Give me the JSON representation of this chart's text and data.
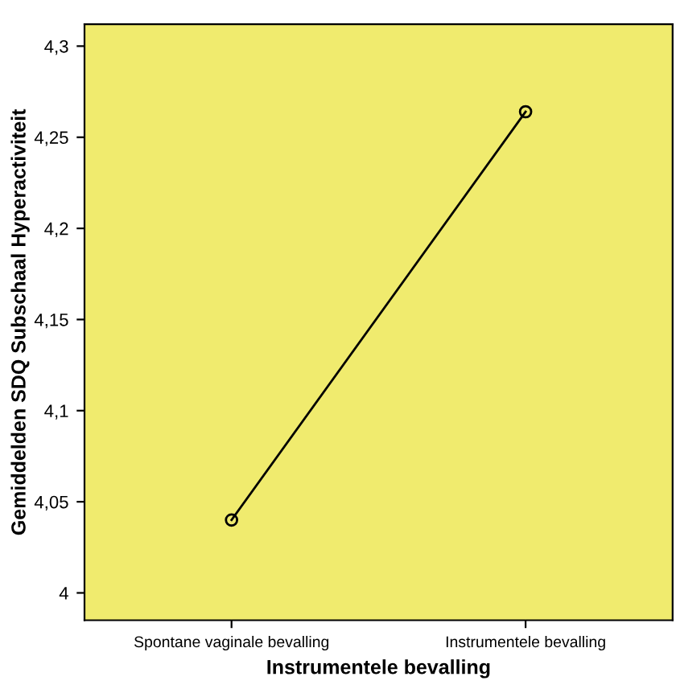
{
  "chart_data": {
    "type": "line",
    "xlabel": "Instrumentele bevalling",
    "ylabel": "Gemiddelden SDQ Subschaal Hyperactiviteit",
    "categories": [
      "Spontane vaginale bevalling",
      "Instrumentele bevalling"
    ],
    "series": [
      {
        "color": "#000000",
        "values": [
          4.04,
          4.264
        ]
      }
    ],
    "ylim": [
      3.985,
      4.312
    ],
    "yticks": [
      4,
      {
        "value": 4.05,
        "label": "4,05"
      },
      {
        "value": 4.1,
        "label": "4,1"
      },
      {
        "value": 4.15,
        "label": "4,15"
      },
      {
        "value": 4.2,
        "label": "4,2"
      },
      {
        "value": 4.25,
        "label": "4,25"
      },
      {
        "value": 4.3,
        "label": "4,3"
      }
    ],
    "grid": false,
    "legend": false,
    "marker": "circle",
    "line_style": "solid"
  }
}
